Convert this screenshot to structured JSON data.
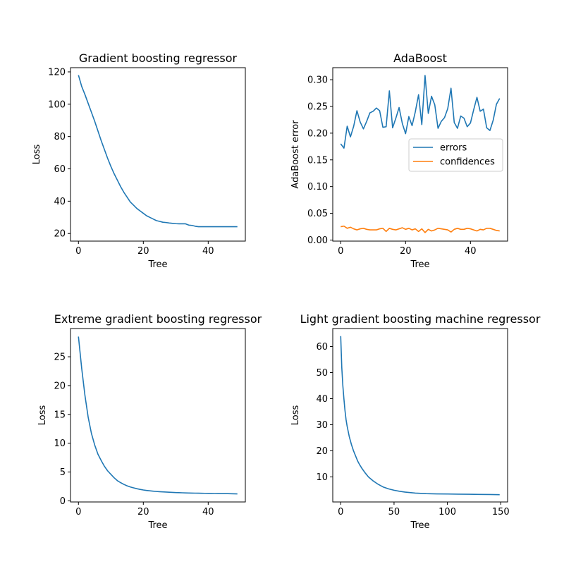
{
  "colors": {
    "series_1": "#1f77b4",
    "series_2": "#ff7f0e",
    "axes": "#000000",
    "background": "#ffffff"
  },
  "chart_data": [
    {
      "type": "line",
      "title": "Gradient boosting regressor",
      "xlabel": "Tree",
      "ylabel": "Loss",
      "xlim": [
        -2.45,
        51.45
      ],
      "ylim": [
        15.3,
        122.6
      ],
      "xticks": [
        0,
        20,
        40
      ],
      "yticks": [
        20,
        40,
        60,
        80,
        100,
        120
      ],
      "grid": false,
      "series": [
        {
          "x": [
            0,
            1,
            2,
            3,
            4,
            5,
            6,
            7,
            8,
            9,
            10,
            11,
            12,
            13,
            14,
            15,
            16,
            17,
            18,
            19,
            20,
            21,
            22,
            23,
            24,
            25,
            26,
            27,
            28,
            29,
            30,
            31,
            32,
            33,
            34,
            35,
            36,
            37,
            38,
            39,
            40,
            41,
            42,
            43,
            44,
            45,
            46,
            47,
            48,
            49
          ],
          "values": [
            118.0,
            111.0,
            106.0,
            100.5,
            95.0,
            89.5,
            83.5,
            77.5,
            72.0,
            66.5,
            61.5,
            57.0,
            53.0,
            49.0,
            45.5,
            42.5,
            39.5,
            37.5,
            35.5,
            34.0,
            32.5,
            31.0,
            30.0,
            29.0,
            28.0,
            27.5,
            27.0,
            26.8,
            26.5,
            26.3,
            26.1,
            26.0,
            26.0,
            26.0,
            25.2,
            25.0,
            24.5,
            24.2,
            24.2,
            24.2,
            24.2,
            24.2,
            24.2,
            24.2,
            24.2,
            24.2,
            24.2,
            24.2,
            24.2,
            24.2
          ]
        }
      ]
    },
    {
      "type": "line",
      "title": "AdaBoost",
      "xlabel": "Tree",
      "ylabel": "AdaBoost error",
      "xlim": [
        -2.45,
        51.45
      ],
      "ylim": [
        -0.002,
        0.3225
      ],
      "xticks": [
        0,
        20,
        40
      ],
      "yticks": [
        0.0,
        0.05,
        0.1,
        0.15,
        0.2,
        0.25,
        0.3
      ],
      "ytick_labels": [
        "0.00",
        "0.05",
        "0.10",
        "0.15",
        "0.20",
        "0.25",
        "0.30"
      ],
      "grid": false,
      "legend_position": "center-right",
      "series": [
        {
          "name": "errors",
          "x": [
            0,
            1,
            2,
            3,
            4,
            5,
            6,
            7,
            8,
            9,
            10,
            11,
            12,
            13,
            14,
            15,
            16,
            17,
            18,
            19,
            20,
            21,
            22,
            23,
            24,
            25,
            26,
            27,
            28,
            29,
            30,
            31,
            32,
            33,
            34,
            35,
            36,
            37,
            38,
            39,
            40,
            41,
            42,
            43,
            44,
            45,
            46,
            47,
            48,
            49
          ],
          "values": [
            0.18,
            0.172,
            0.213,
            0.193,
            0.213,
            0.242,
            0.221,
            0.208,
            0.222,
            0.238,
            0.241,
            0.247,
            0.242,
            0.211,
            0.212,
            0.279,
            0.21,
            0.228,
            0.248,
            0.218,
            0.199,
            0.231,
            0.214,
            0.24,
            0.272,
            0.216,
            0.308,
            0.237,
            0.269,
            0.253,
            0.209,
            0.222,
            0.229,
            0.246,
            0.284,
            0.22,
            0.209,
            0.232,
            0.228,
            0.212,
            0.219,
            0.244,
            0.267,
            0.241,
            0.245,
            0.21,
            0.205,
            0.224,
            0.254,
            0.265
          ]
        },
        {
          "name": "confidences",
          "x": [
            0,
            1,
            2,
            3,
            4,
            5,
            6,
            7,
            8,
            9,
            10,
            11,
            12,
            13,
            14,
            15,
            16,
            17,
            18,
            19,
            20,
            21,
            22,
            23,
            24,
            25,
            26,
            27,
            28,
            29,
            30,
            31,
            32,
            33,
            34,
            35,
            36,
            37,
            38,
            39,
            40,
            41,
            42,
            43,
            44,
            45,
            46,
            47,
            48,
            49
          ],
          "values": [
            0.025,
            0.026,
            0.022,
            0.024,
            0.021,
            0.019,
            0.021,
            0.022,
            0.02,
            0.019,
            0.019,
            0.019,
            0.021,
            0.022,
            0.016,
            0.022,
            0.02,
            0.019,
            0.021,
            0.023,
            0.02,
            0.022,
            0.019,
            0.021,
            0.016,
            0.021,
            0.014,
            0.02,
            0.017,
            0.019,
            0.022,
            0.021,
            0.02,
            0.019,
            0.015,
            0.02,
            0.022,
            0.02,
            0.02,
            0.022,
            0.021,
            0.019,
            0.017,
            0.02,
            0.019,
            0.022,
            0.022,
            0.02,
            0.018,
            0.017
          ]
        }
      ]
    },
    {
      "type": "line",
      "title": "Extreme gradient boosting regressor",
      "xlabel": "Tree",
      "ylabel": "Loss",
      "xlim": [
        -2.45,
        51.45
      ],
      "ylim": [
        -0.2,
        29.9
      ],
      "xticks": [
        0,
        20,
        40
      ],
      "yticks": [
        0,
        5,
        10,
        15,
        20,
        25
      ],
      "grid": false,
      "series": [
        {
          "x": [
            0,
            1,
            2,
            3,
            4,
            5,
            6,
            7,
            8,
            9,
            10,
            11,
            12,
            13,
            14,
            15,
            16,
            17,
            18,
            19,
            20,
            21,
            22,
            23,
            24,
            25,
            26,
            27,
            28,
            29,
            30,
            31,
            32,
            33,
            34,
            35,
            36,
            37,
            38,
            39,
            40,
            41,
            42,
            43,
            44,
            45,
            46,
            47,
            48,
            49
          ],
          "values": [
            28.5,
            23.0,
            18.3,
            14.5,
            11.7,
            9.7,
            8.1,
            7.0,
            6.0,
            5.2,
            4.6,
            4.0,
            3.5,
            3.15,
            2.85,
            2.6,
            2.4,
            2.25,
            2.1,
            1.98,
            1.88,
            1.8,
            1.73,
            1.67,
            1.62,
            1.58,
            1.55,
            1.52,
            1.49,
            1.46,
            1.43,
            1.41,
            1.39,
            1.37,
            1.35,
            1.34,
            1.33,
            1.32,
            1.31,
            1.3,
            1.29,
            1.28,
            1.27,
            1.26,
            1.25,
            1.25,
            1.24,
            1.23,
            1.22,
            1.2
          ]
        }
      ]
    },
    {
      "type": "line",
      "title": "Light gradient boosting machine regressor",
      "xlabel": "Tree",
      "ylabel": "Loss",
      "xlim": [
        -7.45,
        156.45
      ],
      "ylim": [
        0.4,
        66.9
      ],
      "xticks": [
        0,
        50,
        100,
        150
      ],
      "yticks": [
        10,
        20,
        30,
        40,
        50,
        60
      ],
      "grid": false,
      "series": [
        {
          "x": [
            0,
            1,
            2,
            3,
            4,
            5,
            6,
            8,
            10,
            12,
            14,
            16,
            18,
            20,
            23,
            26,
            30,
            35,
            40,
            45,
            50,
            55,
            60,
            70,
            80,
            90,
            100,
            110,
            120,
            130,
            140,
            149
          ],
          "values": [
            64.0,
            52.0,
            45.0,
            40.0,
            35.5,
            32.0,
            29.5,
            25.5,
            22.5,
            20.0,
            18.0,
            16.0,
            14.5,
            13.2,
            11.5,
            10.0,
            8.6,
            7.2,
            6.1,
            5.4,
            4.9,
            4.5,
            4.2,
            3.8,
            3.6,
            3.5,
            3.45,
            3.4,
            3.35,
            3.3,
            3.25,
            3.2
          ]
        }
      ]
    }
  ]
}
